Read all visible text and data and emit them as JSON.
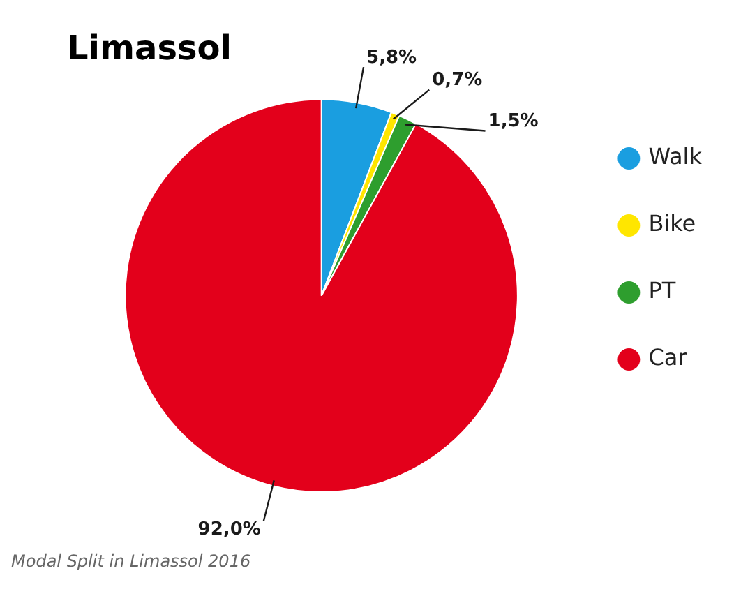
{
  "chart_data": {
    "type": "pie",
    "title": "Limassol",
    "categories": [
      "Walk",
      "Bike",
      "PT",
      "Car"
    ],
    "values": [
      5.8,
      0.7,
      1.5,
      92.0
    ],
    "value_labels": [
      "5,8%",
      "0,7%",
      "1,5%",
      "92,0%"
    ],
    "colors": [
      "#1a9ee0",
      "#ffe600",
      "#2e9e2e",
      "#e3001b"
    ],
    "legend": "right",
    "annotations": [
      "Modal Split in Limassol 2016"
    ]
  }
}
